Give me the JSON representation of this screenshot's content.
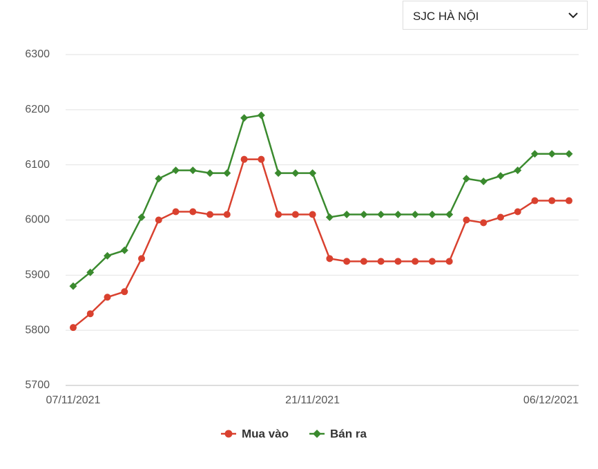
{
  "selector": "SJC HÀ NỘI",
  "chart_data": {
    "type": "line",
    "categories": [
      "07/11/2021",
      null,
      null,
      null,
      null,
      null,
      null,
      null,
      null,
      null,
      null,
      null,
      null,
      null,
      "21/11/2021",
      null,
      null,
      null,
      null,
      null,
      null,
      null,
      null,
      null,
      null,
      null,
      null,
      null,
      null,
      "06/12/2021"
    ],
    "series": [
      {
        "name": "Mua vào",
        "color": "#d9412f",
        "marker": "circle",
        "values": [
          5805,
          5830,
          5860,
          5870,
          5930,
          6000,
          6015,
          6015,
          6010,
          6010,
          6110,
          6110,
          6010,
          6010,
          6010,
          5930,
          5925,
          5925,
          5925,
          5925,
          5925,
          5925,
          5925,
          6000,
          5995,
          6005,
          6015,
          6035,
          6035,
          6035
        ]
      },
      {
        "name": "Bán ra",
        "color": "#3a8a2e",
        "marker": "diamond",
        "values": [
          5880,
          5905,
          5935,
          5945,
          6005,
          6075,
          6090,
          6090,
          6085,
          6085,
          6185,
          6190,
          6085,
          6085,
          6085,
          6005,
          6010,
          6010,
          6010,
          6010,
          6010,
          6010,
          6010,
          6075,
          6070,
          6080,
          6090,
          6120,
          6120,
          6120
        ]
      }
    ],
    "ylim": [
      5700,
      6300
    ],
    "yticks": [
      5700,
      5800,
      5900,
      6000,
      6100,
      6200,
      6300
    ],
    "grid": true
  }
}
